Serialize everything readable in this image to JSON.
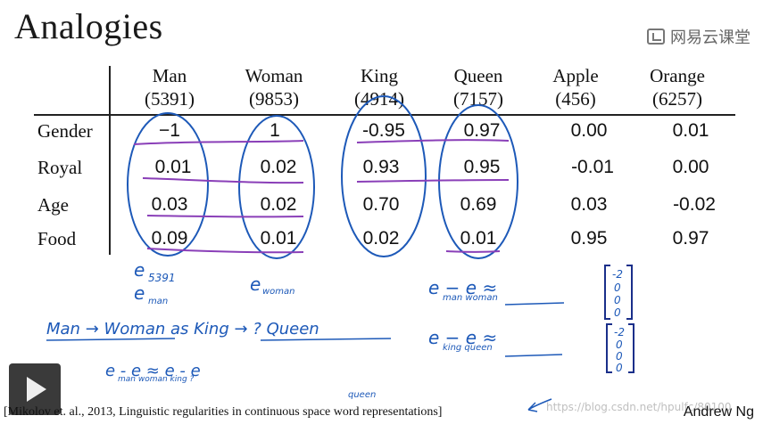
{
  "slide": {
    "title": "Analogies",
    "brand": "网易云课堂",
    "citation": "[Mikolov et. al., 2013, Linguistic regularities in continuous space word representations]",
    "author": "Andrew Ng",
    "watermark": "https://blog.csdn.net/hpulfc/80100"
  },
  "table": {
    "columns": [
      {
        "word": "Man",
        "index": "(5391)"
      },
      {
        "word": "Woman",
        "index": "(9853)"
      },
      {
        "word": "King",
        "index": "(4914)"
      },
      {
        "word": "Queen",
        "index": "(7157)"
      },
      {
        "word": "Apple",
        "index": "(456)"
      },
      {
        "word": "Orange",
        "index": "(6257)"
      }
    ],
    "rows": [
      {
        "feature": "Gender",
        "values": [
          "−1",
          "1",
          "-0.95",
          "0.97",
          "0.00",
          "0.01"
        ]
      },
      {
        "feature": "Royal",
        "values": [
          "0.01",
          "0.02",
          "0.93",
          "0.95",
          "-0.01",
          "0.00"
        ]
      },
      {
        "feature": "Age",
        "values": [
          "0.03",
          "0.02",
          "0.70",
          "0.69",
          "0.03",
          "-0.02"
        ]
      },
      {
        "feature": "Food",
        "values": [
          "0.09",
          "0.01",
          "0.02",
          "0.01",
          "0.95",
          "0.97"
        ]
      }
    ]
  },
  "handwriting": {
    "e5391": "e",
    "e5391_sub": "5391",
    "eman": "e",
    "eman_sub": "man",
    "ewoman": "e",
    "ewoman_sub": "woman",
    "analogy_line": "Man → Woman    as    King → ? Queen",
    "eq_left": "e    - e      ≈ e    - e",
    "eq_left_subs": "man woman king ?",
    "eq_queen_sub": "queen",
    "eq1": "e    − e         ≈",
    "eq1_subs": "man woman",
    "eq2": "e    − e         ≈",
    "eq2_subs": "king queen",
    "vec1": [
      "-2",
      "0",
      "0",
      "0"
    ],
    "vec2": [
      "-2",
      "0",
      "0",
      "0"
    ]
  },
  "colors": {
    "ink_blue": "#1d59b8",
    "ink_purple": "#8a3fb8",
    "ink_darkblue": "#1a2f8a"
  }
}
